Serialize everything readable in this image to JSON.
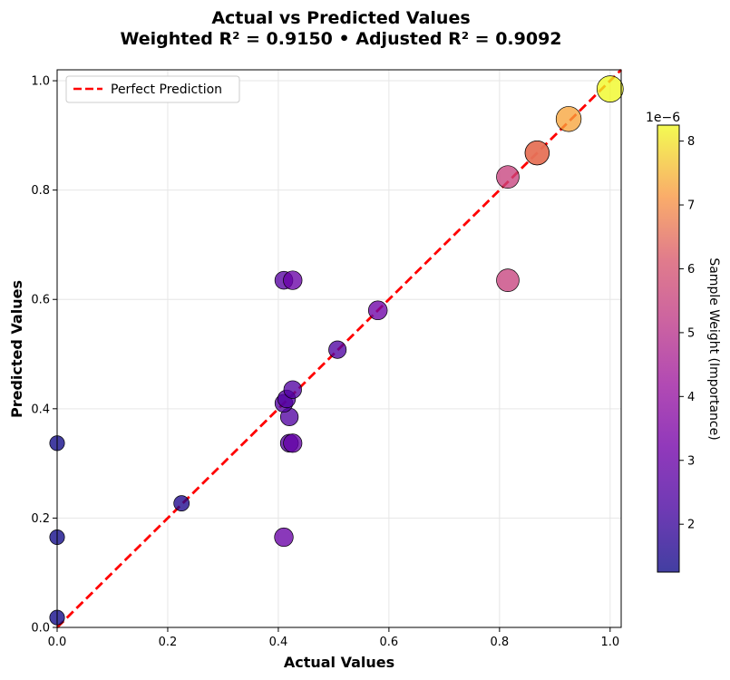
{
  "chart_data": {
    "type": "scatter",
    "title_line1": "Actual vs Predicted Values",
    "title_line2": "Weighted R² = 0.9150  •  Adjusted R² = 0.9092",
    "xlabel": "Actual Values",
    "ylabel": "Predicted Values",
    "xlim": [
      0,
      1.02
    ],
    "ylim": [
      0,
      1.02
    ],
    "xticks": [
      "0.0",
      "0.2",
      "0.4",
      "0.6",
      "0.8",
      "1.0"
    ],
    "yticks": [
      "0.0",
      "0.2",
      "0.4",
      "0.6",
      "0.8",
      "1.0"
    ],
    "grid": true,
    "legend": {
      "placement": "top-left",
      "label": "Perfect Prediction"
    },
    "reference_line": {
      "from": [
        0,
        0
      ],
      "to": [
        1.02,
        1.02
      ],
      "color": "#ff0000",
      "style": "dashed"
    },
    "colorbar": {
      "label": "Sample Weight (Importance)",
      "scale_label": "1e−6",
      "range": [
        1.25,
        8.25
      ],
      "ticks": [
        "2",
        "3",
        "4",
        "5",
        "6",
        "7",
        "8"
      ],
      "colormap": "plasma"
    },
    "points": [
      {
        "x": 0.0,
        "y": 0.337,
        "weight": 1.3
      },
      {
        "x": 0.0,
        "y": 0.165,
        "weight": 1.3
      },
      {
        "x": 0.0,
        "y": 0.018,
        "weight": 1.3
      },
      {
        "x": 0.225,
        "y": 0.227,
        "weight": 1.5
      },
      {
        "x": 0.41,
        "y": 0.165,
        "weight": 3.0
      },
      {
        "x": 0.42,
        "y": 0.337,
        "weight": 2.6
      },
      {
        "x": 0.426,
        "y": 0.337,
        "weight": 2.9
      },
      {
        "x": 0.42,
        "y": 0.385,
        "weight": 2.5
      },
      {
        "x": 0.41,
        "y": 0.41,
        "weight": 2.5
      },
      {
        "x": 0.415,
        "y": 0.418,
        "weight": 2.5
      },
      {
        "x": 0.426,
        "y": 0.435,
        "weight": 2.5
      },
      {
        "x": 0.41,
        "y": 0.635,
        "weight": 2.6
      },
      {
        "x": 0.426,
        "y": 0.635,
        "weight": 3.0
      },
      {
        "x": 0.507,
        "y": 0.508,
        "weight": 2.4
      },
      {
        "x": 0.58,
        "y": 0.58,
        "weight": 3.1
      },
      {
        "x": 0.815,
        "y": 0.635,
        "weight": 5.5
      },
      {
        "x": 0.815,
        "y": 0.824,
        "weight": 5.5
      },
      {
        "x": 0.868,
        "y": 0.868,
        "weight": 6.5
      },
      {
        "x": 0.868,
        "y": 0.868,
        "weight": 6.6
      },
      {
        "x": 0.925,
        "y": 0.93,
        "weight": 7.3
      },
      {
        "x": 1.0,
        "y": 0.985,
        "weight": 8.25
      }
    ]
  }
}
